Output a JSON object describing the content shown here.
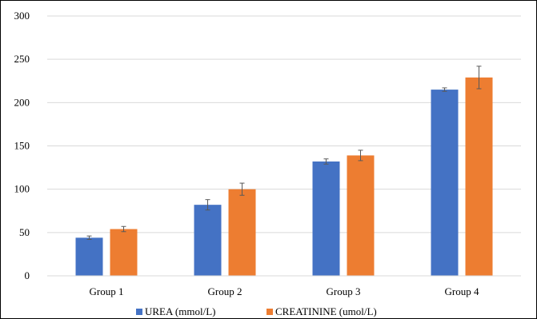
{
  "chart_data": {
    "type": "bar",
    "categories": [
      "Group 1",
      "Group 2",
      "Group 3",
      "Group 4"
    ],
    "series": [
      {
        "name": "UREA (mmol/L)",
        "color": "#4472C4",
        "values": [
          44,
          82,
          132,
          215
        ],
        "errors": [
          2,
          6,
          3,
          2
        ]
      },
      {
        "name": "CREATININE (umol/L)",
        "color": "#ED7D31",
        "values": [
          54,
          100,
          139,
          229
        ],
        "errors": [
          3,
          7,
          6,
          13
        ]
      }
    ],
    "yticks": [
      0,
      50,
      100,
      150,
      200,
      250,
      300
    ],
    "ylim": [
      0,
      300
    ],
    "grid": true,
    "gridColor": "#D9D9D9",
    "legend_position": "bottom"
  }
}
